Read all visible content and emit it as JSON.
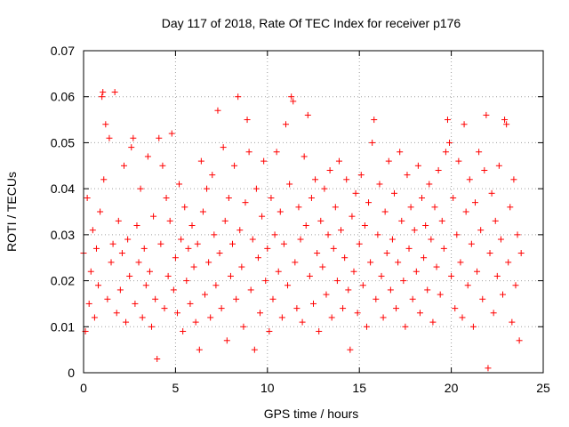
{
  "chart_data": {
    "type": "scatter",
    "title": "Day 117 of 2018, Rate Of TEC Index for receiver p176",
    "xlabel": "GPS time / hours",
    "ylabel": "ROTI / TECUs",
    "xlim": [
      0,
      25
    ],
    "ylim": [
      0,
      0.07
    ],
    "x_ticks": [
      0,
      5,
      10,
      15,
      20,
      25
    ],
    "x_tick_labels": [
      "0",
      "5",
      "10",
      "15",
      "20",
      "25"
    ],
    "y_ticks": [
      0,
      0.01,
      0.02,
      0.03,
      0.04,
      0.05,
      0.06,
      0.07
    ],
    "y_tick_labels": [
      "0",
      "0.01",
      "0.02",
      "0.03",
      "0.04",
      "0.05",
      "0.06",
      "0.07"
    ],
    "grid": true,
    "marker": "plus",
    "color": "#ff0000",
    "series": [
      {
        "name": "",
        "points": [
          [
            0.0,
            0.026
          ],
          [
            0.1,
            0.009
          ],
          [
            0.2,
            0.038
          ],
          [
            0.3,
            0.015
          ],
          [
            0.4,
            0.022
          ],
          [
            0.5,
            0.031
          ],
          [
            0.6,
            0.012
          ],
          [
            0.7,
            0.027
          ],
          [
            0.8,
            0.019
          ],
          [
            0.9,
            0.035
          ],
          [
            1.0,
            0.06
          ],
          [
            1.05,
            0.061
          ],
          [
            1.1,
            0.042
          ],
          [
            1.2,
            0.054
          ],
          [
            1.3,
            0.016
          ],
          [
            1.4,
            0.051
          ],
          [
            1.5,
            0.024
          ],
          [
            1.6,
            0.028
          ],
          [
            1.7,
            0.061
          ],
          [
            1.8,
            0.013
          ],
          [
            1.9,
            0.033
          ],
          [
            2.0,
            0.018
          ],
          [
            2.1,
            0.026
          ],
          [
            2.2,
            0.045
          ],
          [
            2.3,
            0.011
          ],
          [
            2.4,
            0.029
          ],
          [
            2.5,
            0.021
          ],
          [
            2.6,
            0.049
          ],
          [
            2.7,
            0.051
          ],
          [
            2.8,
            0.015
          ],
          [
            2.9,
            0.032
          ],
          [
            3.0,
            0.024
          ],
          [
            3.1,
            0.04
          ],
          [
            3.2,
            0.012
          ],
          [
            3.3,
            0.027
          ],
          [
            3.4,
            0.019
          ],
          [
            3.5,
            0.047
          ],
          [
            3.6,
            0.022
          ],
          [
            3.7,
            0.01
          ],
          [
            3.8,
            0.034
          ],
          [
            3.9,
            0.016
          ],
          [
            4.0,
            0.003
          ],
          [
            4.1,
            0.051
          ],
          [
            4.2,
            0.028
          ],
          [
            4.3,
            0.045
          ],
          [
            4.4,
            0.014
          ],
          [
            4.5,
            0.038
          ],
          [
            4.6,
            0.021
          ],
          [
            4.7,
            0.033
          ],
          [
            4.8,
            0.052
          ],
          [
            4.9,
            0.018
          ],
          [
            5.0,
            0.025
          ],
          [
            5.1,
            0.013
          ],
          [
            5.2,
            0.041
          ],
          [
            5.3,
            0.029
          ],
          [
            5.4,
            0.009
          ],
          [
            5.5,
            0.036
          ],
          [
            5.6,
            0.02
          ],
          [
            5.7,
            0.027
          ],
          [
            5.8,
            0.015
          ],
          [
            5.9,
            0.032
          ],
          [
            6.0,
            0.023
          ],
          [
            6.1,
            0.011
          ],
          [
            6.2,
            0.028
          ],
          [
            6.3,
            0.005
          ],
          [
            6.4,
            0.046
          ],
          [
            6.5,
            0.035
          ],
          [
            6.6,
            0.017
          ],
          [
            6.7,
            0.04
          ],
          [
            6.8,
            0.024
          ],
          [
            6.9,
            0.012
          ],
          [
            7.0,
            0.043
          ],
          [
            7.1,
            0.03
          ],
          [
            7.2,
            0.019
          ],
          [
            7.3,
            0.057
          ],
          [
            7.4,
            0.026
          ],
          [
            7.5,
            0.014
          ],
          [
            7.6,
            0.049
          ],
          [
            7.7,
            0.033
          ],
          [
            7.8,
            0.007
          ],
          [
            7.9,
            0.038
          ],
          [
            8.0,
            0.021
          ],
          [
            8.1,
            0.028
          ],
          [
            8.2,
            0.045
          ],
          [
            8.3,
            0.016
          ],
          [
            8.4,
            0.06
          ],
          [
            8.5,
            0.031
          ],
          [
            8.6,
            0.023
          ],
          [
            8.7,
            0.01
          ],
          [
            8.8,
            0.037
          ],
          [
            8.9,
            0.055
          ],
          [
            9.0,
            0.048
          ],
          [
            9.1,
            0.018
          ],
          [
            9.2,
            0.029
          ],
          [
            9.3,
            0.005
          ],
          [
            9.4,
            0.04
          ],
          [
            9.5,
            0.025
          ],
          [
            9.6,
            0.013
          ],
          [
            9.7,
            0.034
          ],
          [
            9.8,
            0.046
          ],
          [
            9.9,
            0.02
          ],
          [
            10.0,
            0.027
          ],
          [
            10.1,
            0.009
          ],
          [
            10.2,
            0.038
          ],
          [
            10.3,
            0.016
          ],
          [
            10.4,
            0.03
          ],
          [
            10.5,
            0.048
          ],
          [
            10.6,
            0.022
          ],
          [
            10.7,
            0.035
          ],
          [
            10.8,
            0.012
          ],
          [
            10.9,
            0.028
          ],
          [
            11.0,
            0.054
          ],
          [
            11.1,
            0.019
          ],
          [
            11.2,
            0.041
          ],
          [
            11.3,
            0.06
          ],
          [
            11.4,
            0.059
          ],
          [
            11.5,
            0.024
          ],
          [
            11.6,
            0.014
          ],
          [
            11.7,
            0.036
          ],
          [
            11.8,
            0.029
          ],
          [
            11.9,
            0.011
          ],
          [
            12.0,
            0.047
          ],
          [
            12.1,
            0.032
          ],
          [
            12.2,
            0.056
          ],
          [
            12.3,
            0.021
          ],
          [
            12.4,
            0.038
          ],
          [
            12.5,
            0.015
          ],
          [
            12.6,
            0.042
          ],
          [
            12.7,
            0.026
          ],
          [
            12.8,
            0.009
          ],
          [
            12.9,
            0.033
          ],
          [
            13.0,
            0.023
          ],
          [
            13.1,
            0.04
          ],
          [
            13.2,
            0.017
          ],
          [
            13.3,
            0.03
          ],
          [
            13.4,
            0.044
          ],
          [
            13.5,
            0.012
          ],
          [
            13.6,
            0.027
          ],
          [
            13.7,
            0.036
          ],
          [
            13.8,
            0.02
          ],
          [
            13.9,
            0.046
          ],
          [
            14.0,
            0.031
          ],
          [
            14.1,
            0.014
          ],
          [
            14.2,
            0.025
          ],
          [
            14.3,
            0.042
          ],
          [
            14.4,
            0.018
          ],
          [
            14.5,
            0.005
          ],
          [
            14.6,
            0.034
          ],
          [
            14.7,
            0.022
          ],
          [
            14.8,
            0.039
          ],
          [
            14.9,
            0.013
          ],
          [
            15.0,
            0.028
          ],
          [
            15.1,
            0.043
          ],
          [
            15.2,
            0.019
          ],
          [
            15.3,
            0.032
          ],
          [
            15.4,
            0.01
          ],
          [
            15.5,
            0.037
          ],
          [
            15.6,
            0.024
          ],
          [
            15.7,
            0.05
          ],
          [
            15.8,
            0.055
          ],
          [
            15.9,
            0.016
          ],
          [
            16.0,
            0.03
          ],
          [
            16.1,
            0.041
          ],
          [
            16.2,
            0.021
          ],
          [
            16.3,
            0.012
          ],
          [
            16.4,
            0.035
          ],
          [
            16.5,
            0.026
          ],
          [
            16.6,
            0.046
          ],
          [
            16.7,
            0.018
          ],
          [
            16.8,
            0.029
          ],
          [
            16.9,
            0.039
          ],
          [
            17.0,
            0.014
          ],
          [
            17.1,
            0.024
          ],
          [
            17.2,
            0.048
          ],
          [
            17.3,
            0.033
          ],
          [
            17.4,
            0.02
          ],
          [
            17.5,
            0.01
          ],
          [
            17.6,
            0.043
          ],
          [
            17.7,
            0.027
          ],
          [
            17.8,
            0.036
          ],
          [
            17.9,
            0.016
          ],
          [
            18.0,
            0.031
          ],
          [
            18.1,
            0.022
          ],
          [
            18.2,
            0.045
          ],
          [
            18.3,
            0.013
          ],
          [
            18.4,
            0.038
          ],
          [
            18.5,
            0.025
          ],
          [
            18.6,
            0.032
          ],
          [
            18.7,
            0.018
          ],
          [
            18.8,
            0.041
          ],
          [
            18.9,
            0.029
          ],
          [
            19.0,
            0.011
          ],
          [
            19.1,
            0.036
          ],
          [
            19.2,
            0.023
          ],
          [
            19.3,
            0.044
          ],
          [
            19.4,
            0.017
          ],
          [
            19.5,
            0.033
          ],
          [
            19.6,
            0.027
          ],
          [
            19.7,
            0.048
          ],
          [
            19.8,
            0.055
          ],
          [
            19.9,
            0.05
          ],
          [
            20.0,
            0.021
          ],
          [
            20.1,
            0.038
          ],
          [
            20.2,
            0.014
          ],
          [
            20.3,
            0.03
          ],
          [
            20.4,
            0.046
          ],
          [
            20.5,
            0.024
          ],
          [
            20.6,
            0.012
          ],
          [
            20.7,
            0.054
          ],
          [
            20.8,
            0.035
          ],
          [
            20.9,
            0.019
          ],
          [
            21.0,
            0.042
          ],
          [
            21.1,
            0.028
          ],
          [
            21.2,
            0.01
          ],
          [
            21.3,
            0.037
          ],
          [
            21.4,
            0.022
          ],
          [
            21.5,
            0.048
          ],
          [
            21.6,
            0.031
          ],
          [
            21.7,
            0.016
          ],
          [
            21.8,
            0.044
          ],
          [
            21.9,
            0.056
          ],
          [
            22.0,
            0.001
          ],
          [
            22.1,
            0.026
          ],
          [
            22.2,
            0.039
          ],
          [
            22.3,
            0.013
          ],
          [
            22.4,
            0.033
          ],
          [
            22.5,
            0.021
          ],
          [
            22.6,
            0.045
          ],
          [
            22.7,
            0.029
          ],
          [
            22.8,
            0.017
          ],
          [
            22.9,
            0.055
          ],
          [
            23.0,
            0.054
          ],
          [
            23.1,
            0.024
          ],
          [
            23.2,
            0.036
          ],
          [
            23.3,
            0.011
          ],
          [
            23.4,
            0.042
          ],
          [
            23.5,
            0.019
          ],
          [
            23.6,
            0.03
          ],
          [
            23.7,
            0.007
          ],
          [
            23.8,
            0.026
          ]
        ]
      }
    ]
  }
}
